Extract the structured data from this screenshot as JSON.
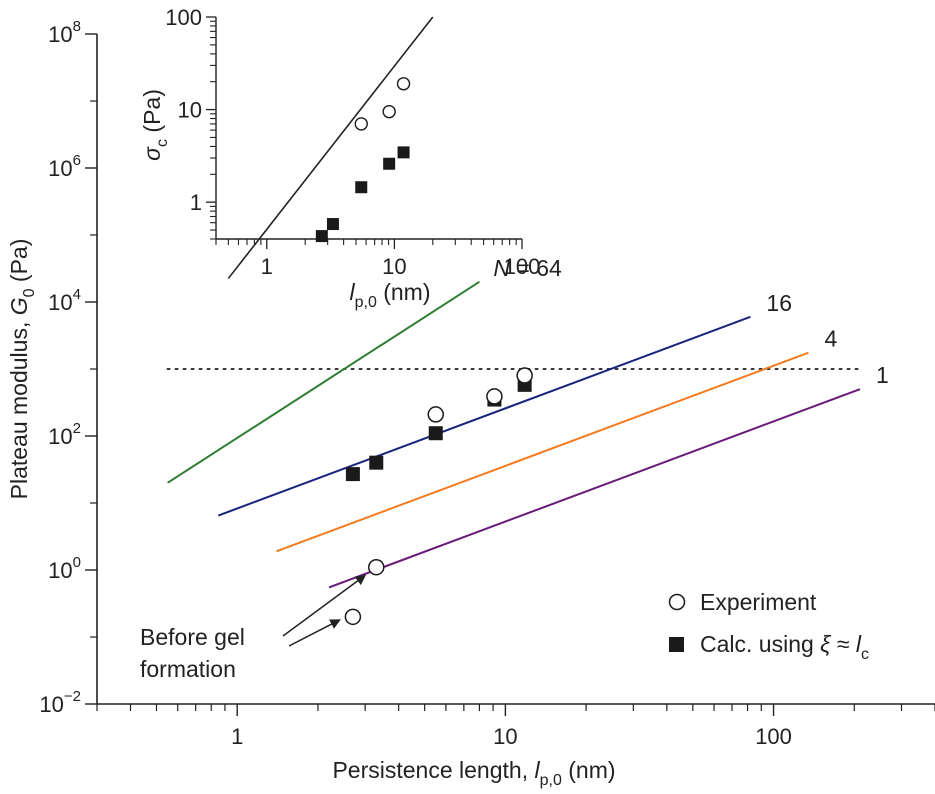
{
  "chart_data": [
    {
      "type": "line",
      "xlabel": {
        "prefix": "Persistence length, ",
        "var": "l",
        "sub": "p,0",
        "suffix": " (nm)"
      },
      "ylabel": {
        "prefix": "Plateau modulus, ",
        "var": "G",
        "sub": "0",
        "suffix": " (Pa)"
      },
      "x_scale": "log",
      "y_scale": "log",
      "xlim": [
        0.3,
        400
      ],
      "ylim": [
        0.01,
        100000000
      ],
      "x_ticks": [
        {
          "value": 1,
          "label": "1"
        },
        {
          "value": 10,
          "label": "10"
        },
        {
          "value": 100,
          "label": "100"
        }
      ],
      "y_ticks": [
        {
          "value": 0.01,
          "base": "10",
          "exp": "−2"
        },
        {
          "value": 1,
          "base": "10",
          "exp": "0"
        },
        {
          "value": 100,
          "base": "10",
          "exp": "2"
        },
        {
          "value": 10000,
          "base": "10",
          "exp": "4"
        },
        {
          "value": 1000000,
          "base": "10",
          "exp": "6"
        },
        {
          "value": 100000000,
          "base": "10",
          "exp": "8"
        }
      ],
      "series": [
        {
          "name": "N = 64",
          "label_var": "N",
          "label_rest": " = 64",
          "color": "#2e7d32",
          "x": [
            0.55,
            8.0
          ],
          "y": [
            20,
            20000
          ]
        },
        {
          "name": "16",
          "color": "#1a237e",
          "x": [
            0.85,
            82
          ],
          "y": [
            6.5,
            6000
          ]
        },
        {
          "name": "4",
          "color": "#f47b20",
          "x": [
            1.4,
            135
          ],
          "y": [
            1.9,
            1750
          ]
        },
        {
          "name": "1",
          "color": "#6a1b7a",
          "x": [
            2.2,
            210
          ],
          "y": [
            0.55,
            500
          ]
        }
      ],
      "reference_line": {
        "y": 1000,
        "x": [
          0.55,
          210
        ],
        "style": "dotted"
      },
      "experiment": {
        "label": "Experiment",
        "points": [
          {
            "x": 2.7,
            "y": 0.2
          },
          {
            "x": 3.3,
            "y": 1.1
          },
          {
            "x": 5.5,
            "y": 210
          },
          {
            "x": 9.1,
            "y": 390
          },
          {
            "x": 11.8,
            "y": 800
          }
        ]
      },
      "calc": {
        "label_prefix": "Calc. using ",
        "label_var": "ξ",
        "label_mid": " ≈ ",
        "label_var2": "l",
        "label_sub": "c",
        "points": [
          {
            "x": 2.7,
            "y": 27
          },
          {
            "x": 3.3,
            "y": 40
          },
          {
            "x": 5.5,
            "y": 110
          },
          {
            "x": 9.1,
            "y": 350
          },
          {
            "x": 11.8,
            "y": 580
          }
        ]
      },
      "annotation": {
        "line1": "Before gel",
        "line2": "formation"
      }
    },
    {
      "type": "line",
      "xlabel": {
        "var": "l",
        "sub": "p,0",
        "suffix": " (nm)"
      },
      "ylabel": {
        "var": "σ",
        "sub": "c",
        "suffix": " (Pa)"
      },
      "x_scale": "log",
      "y_scale": "log",
      "xlim": [
        0.4,
        100
      ],
      "ylim": [
        0.4,
        100
      ],
      "x_ticks": [
        {
          "value": 1,
          "label": "1"
        },
        {
          "value": 10,
          "label": "10"
        },
        {
          "value": 100,
          "label": "100"
        }
      ],
      "y_ticks": [
        {
          "value": 1,
          "label": "1"
        },
        {
          "value": 10,
          "label": "10"
        },
        {
          "value": 100,
          "label": "100"
        }
      ],
      "fit_line": {
        "x": [
          0.5,
          20
        ],
        "y": [
          0.15,
          100
        ],
        "color": "#222222"
      },
      "experiment_points": [
        {
          "x": 5.5,
          "y": 7.0
        },
        {
          "x": 9.1,
          "y": 9.5
        },
        {
          "x": 11.8,
          "y": 19
        }
      ],
      "calc_points": [
        {
          "x": 2.7,
          "y": 0.43
        },
        {
          "x": 3.3,
          "y": 0.58
        },
        {
          "x": 5.5,
          "y": 1.45
        },
        {
          "x": 9.1,
          "y": 2.6
        },
        {
          "x": 11.8,
          "y": 3.45
        }
      ]
    }
  ]
}
